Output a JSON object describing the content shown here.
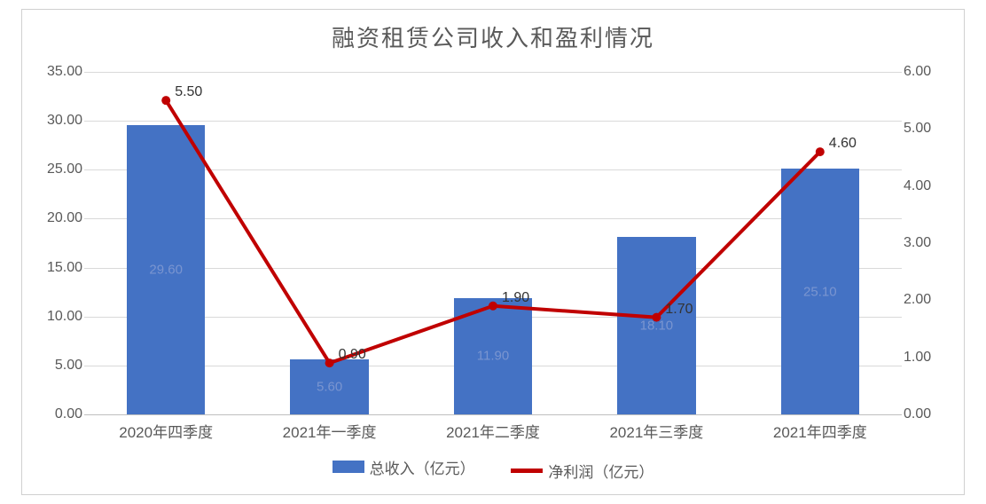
{
  "chart": {
    "type": "bar+line",
    "title": "融资租赁公司收入和盈利情况",
    "title_fontsize": 26,
    "title_color": "#595959",
    "background_color": "#ffffff",
    "grid_color": "#d9d9d9",
    "categories": [
      "2020年四季度",
      "2021年一季度",
      "2021年二季度",
      "2021年三季度",
      "2021年四季度"
    ],
    "bar_series": {
      "name": "总收入（亿元）",
      "values": [
        29.6,
        5.6,
        11.9,
        18.1,
        25.1
      ],
      "color": "#4472c4",
      "bar_width_ratio": 0.48,
      "value_labels": [
        "29.60",
        "5.60",
        "11.90",
        "18.10",
        "25.10"
      ],
      "inner_label_color": "#7a95d0"
    },
    "line_series": {
      "name": "净利润（亿元）",
      "values": [
        5.5,
        0.9,
        1.9,
        1.7,
        4.6
      ],
      "color": "#c00000",
      "line_width": 4,
      "marker": "circle",
      "marker_size": 6,
      "value_labels": [
        "5.50",
        "0.90",
        "1.90",
        "1.70",
        "4.60"
      ]
    },
    "y_left": {
      "min": 0,
      "max": 35,
      "step": 5,
      "ticks": [
        "0.00",
        "5.00",
        "10.00",
        "15.00",
        "20.00",
        "25.00",
        "30.00",
        "35.00"
      ]
    },
    "y_right": {
      "min": 0,
      "max": 6,
      "step": 1,
      "ticks": [
        "0.00",
        "1.00",
        "2.00",
        "3.00",
        "4.00",
        "5.00",
        "6.00"
      ]
    },
    "axis_label_fontsize": 16,
    "axis_label_color": "#595959"
  },
  "legend": {
    "items": [
      {
        "kind": "bar",
        "label": "总收入（亿元）",
        "color": "#4472c4"
      },
      {
        "kind": "line",
        "label": "净利润（亿元）",
        "color": "#c00000"
      }
    ]
  }
}
